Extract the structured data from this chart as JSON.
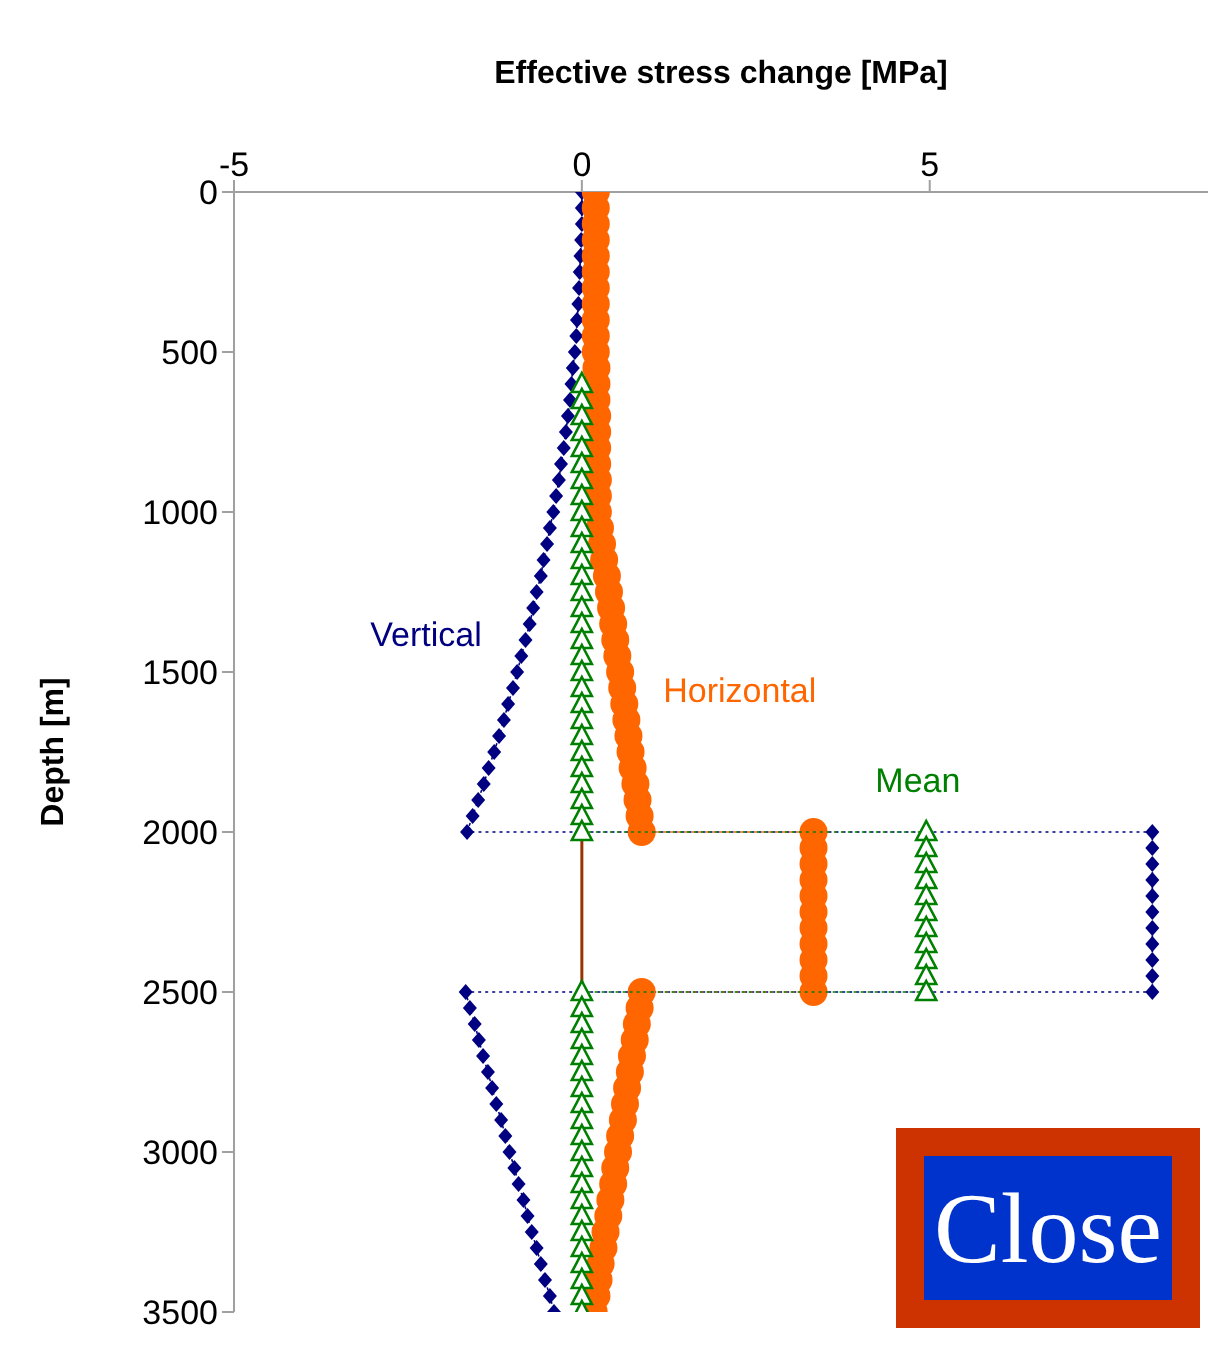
{
  "chart_data": {
    "type": "line",
    "xlabel": "Effective stress change [MPa]",
    "ylabel": "Depth [m]",
    "xlim": [
      -5,
      9
    ],
    "xticks": [
      -5,
      0,
      5
    ],
    "ylim": [
      3500,
      0
    ],
    "yticks": [
      0,
      500,
      1000,
      1500,
      2000,
      2500,
      3000,
      3500
    ],
    "grid": false,
    "legend": false,
    "annotations": [
      "Close"
    ],
    "series": [
      {
        "color": "#993300",
        "marker": "none",
        "line_style": "solid",
        "x": [
          0,
          0
        ],
        "values": [
          2000,
          2500
        ]
      },
      {
        "name": "Vertical",
        "color": "#000080",
        "marker": "diamond",
        "line_style": "dotted",
        "x": [
          0,
          0,
          0,
          -0.01,
          -0.02,
          -0.03,
          -0.04,
          -0.05,
          -0.07,
          -0.08,
          -0.1,
          -0.13,
          -0.15,
          -0.17,
          -0.2,
          -0.23,
          -0.26,
          -0.3,
          -0.33,
          -0.37,
          -0.41,
          -0.46,
          -0.5,
          -0.55,
          -0.59,
          -0.65,
          -0.7,
          -0.75,
          -0.81,
          -0.87,
          -0.93,
          -0.99,
          -1.06,
          -1.12,
          -1.19,
          -1.26,
          -1.34,
          -1.41,
          -1.49,
          -1.57,
          -1.65,
          8.2,
          8.2,
          8.2,
          8.2,
          8.2,
          8.2,
          8.2,
          8.2,
          8.2,
          8.2,
          8.2,
          -1.67,
          -1.61,
          -1.54,
          -1.48,
          -1.42,
          -1.35,
          -1.29,
          -1.23,
          -1.16,
          -1.1,
          -1.04,
          -0.97,
          -0.91,
          -0.84,
          -0.78,
          -0.72,
          -0.65,
          -0.59,
          -0.53,
          -0.46,
          -0.4
        ],
        "values": [
          0,
          50,
          100,
          150,
          200,
          250,
          300,
          350,
          400,
          450,
          500,
          550,
          600,
          650,
          700,
          750,
          800,
          850,
          900,
          950,
          1000,
          1050,
          1100,
          1150,
          1200,
          1250,
          1300,
          1350,
          1400,
          1450,
          1500,
          1550,
          1600,
          1650,
          1700,
          1750,
          1800,
          1850,
          1900,
          1950,
          2000,
          2000,
          2050,
          2100,
          2150,
          2200,
          2250,
          2300,
          2350,
          2400,
          2450,
          2500,
          2500,
          2550,
          2600,
          2650,
          2700,
          2750,
          2800,
          2850,
          2900,
          2950,
          3000,
          3050,
          3100,
          3150,
          3200,
          3250,
          3300,
          3350,
          3400,
          3450,
          3500
        ]
      },
      {
        "name": "Horizontal",
        "color": "#ff6600",
        "marker": "circle",
        "line_style": "dotted",
        "x": [
          0.2,
          0.2,
          0.2,
          0.2,
          0.2,
          0.2,
          0.2,
          0.2,
          0.2,
          0.2,
          0.2,
          0.21,
          0.21,
          0.21,
          0.22,
          0.22,
          0.22,
          0.22,
          0.23,
          0.23,
          0.23,
          0.26,
          0.29,
          0.32,
          0.36,
          0.39,
          0.42,
          0.45,
          0.48,
          0.51,
          0.55,
          0.58,
          0.61,
          0.64,
          0.67,
          0.7,
          0.73,
          0.77,
          0.8,
          0.83,
          0.86,
          3.33,
          3.33,
          3.33,
          3.33,
          3.33,
          3.33,
          3.33,
          3.33,
          3.33,
          3.33,
          3.33,
          0.86,
          0.83,
          0.79,
          0.76,
          0.72,
          0.69,
          0.65,
          0.62,
          0.59,
          0.55,
          0.52,
          0.48,
          0.45,
          0.41,
          0.38,
          0.34,
          0.31,
          0.27,
          0.24,
          0.21,
          0.17
        ],
        "values": [
          0,
          50,
          100,
          150,
          200,
          250,
          300,
          350,
          400,
          450,
          500,
          550,
          600,
          650,
          700,
          750,
          800,
          850,
          900,
          950,
          1000,
          1050,
          1100,
          1150,
          1200,
          1250,
          1300,
          1350,
          1400,
          1450,
          1500,
          1550,
          1600,
          1650,
          1700,
          1750,
          1800,
          1850,
          1900,
          1950,
          2000,
          2000,
          2050,
          2100,
          2150,
          2200,
          2250,
          2300,
          2350,
          2400,
          2450,
          2500,
          2500,
          2550,
          2600,
          2650,
          2700,
          2750,
          2800,
          2850,
          2900,
          2950,
          3000,
          3050,
          3100,
          3150,
          3200,
          3250,
          3300,
          3350,
          3400,
          3450,
          3500
        ]
      },
      {
        "name": "Mean",
        "color": "#008000",
        "marker": "triangle",
        "line_style": "dotted",
        "x": [
          0,
          0,
          0,
          0,
          0,
          0,
          0,
          0,
          0,
          0,
          0,
          0,
          0,
          0,
          0,
          0,
          0,
          0,
          0,
          0,
          0,
          0,
          0,
          0,
          0,
          0,
          0,
          0,
          0,
          4.95,
          4.95,
          4.95,
          4.95,
          4.95,
          4.95,
          4.95,
          4.95,
          4.95,
          4.95,
          4.95,
          0,
          0,
          0,
          0,
          0,
          0,
          0,
          0,
          0,
          0,
          0,
          0,
          0,
          0,
          0,
          0,
          0,
          0,
          0,
          0,
          0
        ],
        "values": [
          600,
          650,
          700,
          750,
          800,
          850,
          900,
          950,
          1000,
          1050,
          1100,
          1150,
          1200,
          1250,
          1300,
          1350,
          1400,
          1450,
          1500,
          1550,
          1600,
          1650,
          1700,
          1750,
          1800,
          1850,
          1900,
          1950,
          2000,
          2000,
          2050,
          2100,
          2150,
          2200,
          2250,
          2300,
          2350,
          2400,
          2450,
          2500,
          2500,
          2550,
          2600,
          2650,
          2700,
          2750,
          2800,
          2850,
          2900,
          2950,
          3000,
          3050,
          3100,
          3150,
          3200,
          3250,
          3300,
          3350,
          3400,
          3450,
          3500
        ]
      }
    ]
  }
}
